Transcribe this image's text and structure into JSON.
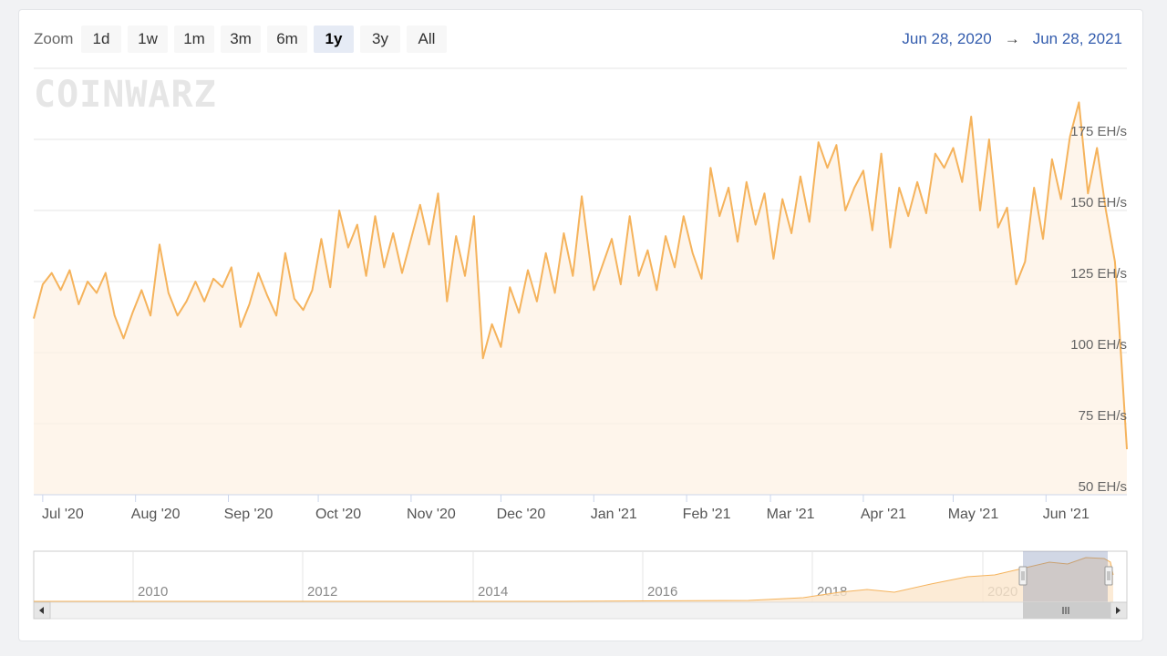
{
  "zoom": {
    "label": "Zoom",
    "buttons": [
      "1d",
      "1w",
      "1m",
      "3m",
      "6m",
      "1y",
      "3y",
      "All"
    ],
    "active": "1y"
  },
  "range": {
    "from": "Jun 28, 2020",
    "arrow": "→",
    "to": "Jun 28, 2021"
  },
  "watermark": "COINWARZ",
  "colors": {
    "line": "#f5b35c",
    "fill": "#fdf1e3",
    "accent": "#335cad",
    "selection": "#c6cde0"
  },
  "chart_data": {
    "type": "area",
    "title": "",
    "unit": "EH/s",
    "ylim": [
      50,
      200
    ],
    "yticks": [
      {
        "v": 50,
        "label": "50 EH/s"
      },
      {
        "v": 75,
        "label": "75 EH/s"
      },
      {
        "v": 100,
        "label": "100 EH/s"
      },
      {
        "v": 125,
        "label": "125 EH/s"
      },
      {
        "v": 150,
        "label": "150 EH/s"
      },
      {
        "v": 175,
        "label": "175 EH/s"
      }
    ],
    "xlim": [
      "2020-06-28",
      "2021-06-28"
    ],
    "xticks": [
      {
        "d": "2020-07-01",
        "label": "Jul '20"
      },
      {
        "d": "2020-08-01",
        "label": "Aug '20"
      },
      {
        "d": "2020-09-01",
        "label": "Sep '20"
      },
      {
        "d": "2020-10-01",
        "label": "Oct '20"
      },
      {
        "d": "2020-11-01",
        "label": "Nov '20"
      },
      {
        "d": "2020-12-01",
        "label": "Dec '20"
      },
      {
        "d": "2021-01-01",
        "label": "Jan '21"
      },
      {
        "d": "2021-02-01",
        "label": "Feb '21"
      },
      {
        "d": "2021-03-01",
        "label": "Mar '21"
      },
      {
        "d": "2021-04-01",
        "label": "Apr '21"
      },
      {
        "d": "2021-05-01",
        "label": "May '21"
      },
      {
        "d": "2021-06-01",
        "label": "Jun '21"
      }
    ],
    "series": [
      {
        "name": "",
        "points": [
          [
            "2020-06-28",
            112
          ],
          [
            "2020-07-01",
            124
          ],
          [
            "2020-07-04",
            128
          ],
          [
            "2020-07-07",
            122
          ],
          [
            "2020-07-10",
            129
          ],
          [
            "2020-07-13",
            117
          ],
          [
            "2020-07-16",
            125
          ],
          [
            "2020-07-19",
            121
          ],
          [
            "2020-07-22",
            128
          ],
          [
            "2020-07-25",
            113
          ],
          [
            "2020-07-28",
            105
          ],
          [
            "2020-07-31",
            114
          ],
          [
            "2020-08-03",
            122
          ],
          [
            "2020-08-06",
            113
          ],
          [
            "2020-08-09",
            138
          ],
          [
            "2020-08-12",
            121
          ],
          [
            "2020-08-15",
            113
          ],
          [
            "2020-08-18",
            118
          ],
          [
            "2020-08-21",
            125
          ],
          [
            "2020-08-24",
            118
          ],
          [
            "2020-08-27",
            126
          ],
          [
            "2020-08-30",
            123
          ],
          [
            "2020-09-02",
            130
          ],
          [
            "2020-09-05",
            109
          ],
          [
            "2020-09-08",
            117
          ],
          [
            "2020-09-11",
            128
          ],
          [
            "2020-09-14",
            120
          ],
          [
            "2020-09-17",
            113
          ],
          [
            "2020-09-20",
            135
          ],
          [
            "2020-09-23",
            119
          ],
          [
            "2020-09-26",
            115
          ],
          [
            "2020-09-29",
            122
          ],
          [
            "2020-10-02",
            140
          ],
          [
            "2020-10-05",
            123
          ],
          [
            "2020-10-08",
            150
          ],
          [
            "2020-10-11",
            137
          ],
          [
            "2020-10-14",
            145
          ],
          [
            "2020-10-17",
            127
          ],
          [
            "2020-10-20",
            148
          ],
          [
            "2020-10-23",
            130
          ],
          [
            "2020-10-26",
            142
          ],
          [
            "2020-10-29",
            128
          ],
          [
            "2020-11-01",
            140
          ],
          [
            "2020-11-04",
            152
          ],
          [
            "2020-11-07",
            138
          ],
          [
            "2020-11-10",
            156
          ],
          [
            "2020-11-13",
            118
          ],
          [
            "2020-11-16",
            141
          ],
          [
            "2020-11-19",
            127
          ],
          [
            "2020-11-22",
            148
          ],
          [
            "2020-11-25",
            98
          ],
          [
            "2020-11-28",
            110
          ],
          [
            "2020-12-01",
            102
          ],
          [
            "2020-12-04",
            123
          ],
          [
            "2020-12-07",
            114
          ],
          [
            "2020-12-10",
            129
          ],
          [
            "2020-12-13",
            118
          ],
          [
            "2020-12-16",
            135
          ],
          [
            "2020-12-19",
            121
          ],
          [
            "2020-12-22",
            142
          ],
          [
            "2020-12-25",
            127
          ],
          [
            "2020-12-28",
            155
          ],
          [
            "2021-01-01",
            122
          ],
          [
            "2021-01-04",
            131
          ],
          [
            "2021-01-07",
            140
          ],
          [
            "2021-01-10",
            124
          ],
          [
            "2021-01-13",
            148
          ],
          [
            "2021-01-16",
            127
          ],
          [
            "2021-01-19",
            136
          ],
          [
            "2021-01-22",
            122
          ],
          [
            "2021-01-25",
            141
          ],
          [
            "2021-01-28",
            130
          ],
          [
            "2021-01-31",
            148
          ],
          [
            "2021-02-03",
            135
          ],
          [
            "2021-02-06",
            126
          ],
          [
            "2021-02-09",
            165
          ],
          [
            "2021-02-12",
            148
          ],
          [
            "2021-02-15",
            158
          ],
          [
            "2021-02-18",
            139
          ],
          [
            "2021-02-21",
            160
          ],
          [
            "2021-02-24",
            145
          ],
          [
            "2021-02-27",
            156
          ],
          [
            "2021-03-02",
            133
          ],
          [
            "2021-03-05",
            154
          ],
          [
            "2021-03-08",
            142
          ],
          [
            "2021-03-11",
            162
          ],
          [
            "2021-03-14",
            146
          ],
          [
            "2021-03-17",
            174
          ],
          [
            "2021-03-20",
            165
          ],
          [
            "2021-03-23",
            173
          ],
          [
            "2021-03-26",
            150
          ],
          [
            "2021-03-29",
            158
          ],
          [
            "2021-04-01",
            164
          ],
          [
            "2021-04-04",
            143
          ],
          [
            "2021-04-07",
            170
          ],
          [
            "2021-04-10",
            137
          ],
          [
            "2021-04-13",
            158
          ],
          [
            "2021-04-16",
            148
          ],
          [
            "2021-04-19",
            160
          ],
          [
            "2021-04-22",
            149
          ],
          [
            "2021-04-25",
            170
          ],
          [
            "2021-04-28",
            165
          ],
          [
            "2021-05-01",
            172
          ],
          [
            "2021-05-04",
            160
          ],
          [
            "2021-05-07",
            183
          ],
          [
            "2021-05-10",
            150
          ],
          [
            "2021-05-13",
            175
          ],
          [
            "2021-05-16",
            144
          ],
          [
            "2021-05-19",
            151
          ],
          [
            "2021-05-22",
            124
          ],
          [
            "2021-05-25",
            132
          ],
          [
            "2021-05-28",
            158
          ],
          [
            "2021-05-31",
            140
          ],
          [
            "2021-06-03",
            168
          ],
          [
            "2021-06-06",
            154
          ],
          [
            "2021-06-09",
            176
          ],
          [
            "2021-06-12",
            188
          ],
          [
            "2021-06-15",
            156
          ],
          [
            "2021-06-18",
            172
          ],
          [
            "2021-06-21",
            150
          ],
          [
            "2021-06-24",
            132
          ],
          [
            "2021-06-26",
            100
          ],
          [
            "2021-06-28",
            66
          ]
        ]
      }
    ],
    "navigator": {
      "labels": [
        "2010",
        "2012",
        "2014",
        "2016",
        "2018",
        "2020"
      ]
    }
  }
}
